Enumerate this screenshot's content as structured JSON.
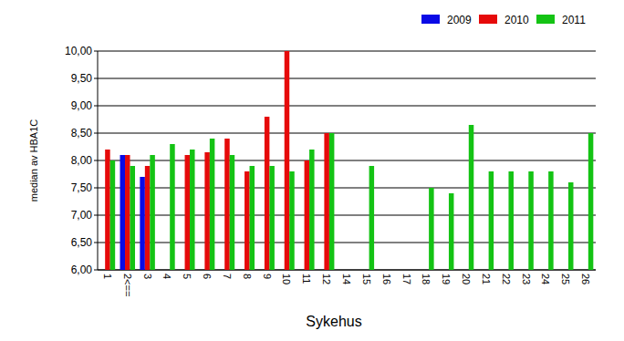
{
  "chart_data": {
    "type": "bar",
    "x_label": "Sykehus",
    "y_label": "median av HBA1C",
    "categories": [
      "1",
      "2<==",
      "3",
      "4",
      "5",
      "6",
      "7",
      "8",
      "9",
      "10",
      "11",
      "12",
      "14",
      "15",
      "16",
      "17",
      "18",
      "19",
      "20",
      "21",
      "22",
      "23",
      "24",
      "25",
      "26"
    ],
    "series": [
      {
        "name": "2009",
        "color": "#0a0ae6",
        "values": [
          null,
          8.1,
          7.7,
          null,
          null,
          null,
          null,
          null,
          null,
          null,
          null,
          null,
          null,
          null,
          null,
          null,
          null,
          null,
          null,
          null,
          null,
          null,
          null,
          null,
          null
        ]
      },
      {
        "name": "2010",
        "color": "#e60a0a",
        "values": [
          8.2,
          8.1,
          7.9,
          null,
          8.1,
          8.15,
          8.4,
          7.8,
          8.8,
          10.0,
          8.0,
          8.5,
          null,
          null,
          null,
          null,
          null,
          null,
          null,
          null,
          null,
          null,
          null,
          null,
          null
        ]
      },
      {
        "name": "2011",
        "color": "#14c314",
        "values": [
          8.0,
          7.9,
          8.1,
          8.3,
          8.2,
          8.4,
          8.1,
          7.9,
          7.9,
          7.8,
          8.2,
          8.5,
          null,
          7.9,
          null,
          null,
          7.5,
          7.4,
          8.65,
          7.8,
          7.8,
          7.8,
          7.8,
          7.6,
          8.5
        ]
      }
    ],
    "ylim": [
      6,
      10
    ],
    "yticks": [
      {
        "value": 6,
        "label": "6,00"
      },
      {
        "value": 6.5,
        "label": "6,50"
      },
      {
        "value": 7,
        "label": "7,00"
      },
      {
        "value": 7.5,
        "label": "7,50"
      },
      {
        "value": 8,
        "label": "8,00"
      },
      {
        "value": 8.5,
        "label": "8,50"
      },
      {
        "value": 9,
        "label": "9,00"
      },
      {
        "value": 9.5,
        "label": "9,50"
      },
      {
        "value": 10,
        "label": "10,00"
      }
    ],
    "grid": true,
    "legend": "top-right"
  }
}
